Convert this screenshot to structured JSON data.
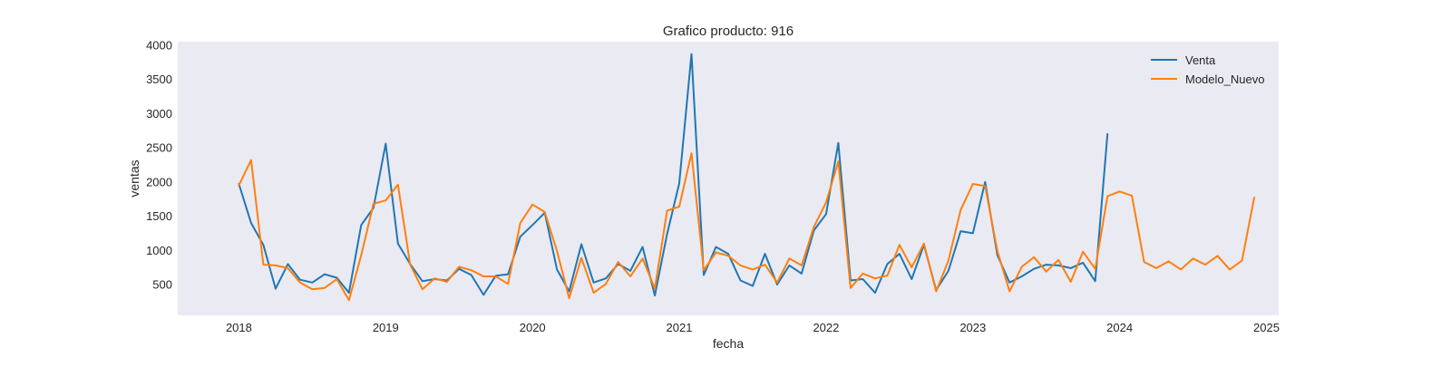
{
  "chart_data": {
    "type": "line",
    "title": "Grafico producto: 916",
    "xlabel": "fecha",
    "ylabel": "ventas",
    "x_ticks": [
      "2018",
      "2019",
      "2020",
      "2021",
      "2022",
      "2023",
      "2024",
      "2025"
    ],
    "y_ticks": [
      500,
      1000,
      1500,
      2000,
      2500,
      3000,
      3500,
      4000
    ],
    "xlim": [
      "2017-08",
      "2025-02"
    ],
    "ylim": [
      50,
      4050
    ],
    "grid": false,
    "legend_position": "top-right",
    "series": [
      {
        "name": "Venta",
        "color": "#1f77b4",
        "x": [
          "2018-01",
          "2018-02",
          "2018-03",
          "2018-04",
          "2018-05",
          "2018-06",
          "2018-07",
          "2018-08",
          "2018-09",
          "2018-10",
          "2018-11",
          "2018-12",
          "2019-01",
          "2019-02",
          "2019-03",
          "2019-04",
          "2019-05",
          "2019-06",
          "2019-07",
          "2019-08",
          "2019-09",
          "2019-10",
          "2019-11",
          "2019-12",
          "2020-01",
          "2020-02",
          "2020-03",
          "2020-04",
          "2020-05",
          "2020-06",
          "2020-07",
          "2020-08",
          "2020-09",
          "2020-10",
          "2020-11",
          "2020-12",
          "2021-01",
          "2021-02",
          "2021-03",
          "2021-04",
          "2021-05",
          "2021-06",
          "2021-07",
          "2021-08",
          "2021-09",
          "2021-10",
          "2021-11",
          "2021-12",
          "2022-01",
          "2022-02",
          "2022-03",
          "2022-04",
          "2022-05",
          "2022-06",
          "2022-07",
          "2022-08",
          "2022-09",
          "2022-10",
          "2022-11",
          "2022-12",
          "2023-01",
          "2023-02",
          "2023-03",
          "2023-04",
          "2023-05",
          "2023-06",
          "2023-07",
          "2023-08",
          "2023-09",
          "2023-10",
          "2023-11",
          "2023-12"
        ],
        "values": [
          1970,
          1400,
          1080,
          440,
          800,
          570,
          530,
          650,
          600,
          380,
          1370,
          1620,
          2560,
          1100,
          800,
          550,
          580,
          560,
          730,
          640,
          350,
          630,
          650,
          1200,
          1370,
          1550,
          720,
          400,
          1090,
          530,
          590,
          800,
          700,
          1050,
          340,
          1240,
          1980,
          3870,
          640,
          1050,
          950,
          560,
          480,
          950,
          500,
          780,
          660,
          1290,
          1530,
          2570,
          560,
          580,
          380,
          800,
          950,
          580,
          1080,
          420,
          700,
          1280,
          1250,
          2000,
          930,
          530,
          620,
          730,
          790,
          780,
          740,
          820,
          550,
          2700
        ]
      },
      {
        "name": "Modelo_Nuevo",
        "color": "#ff7f0e",
        "x": [
          "2018-01",
          "2018-02",
          "2018-03",
          "2018-04",
          "2018-05",
          "2018-06",
          "2018-07",
          "2018-08",
          "2018-09",
          "2018-10",
          "2018-11",
          "2018-12",
          "2019-01",
          "2019-02",
          "2019-03",
          "2019-04",
          "2019-05",
          "2019-06",
          "2019-07",
          "2019-08",
          "2019-09",
          "2019-10",
          "2019-11",
          "2019-12",
          "2020-01",
          "2020-02",
          "2020-03",
          "2020-04",
          "2020-05",
          "2020-06",
          "2020-07",
          "2020-08",
          "2020-09",
          "2020-10",
          "2020-11",
          "2020-12",
          "2021-01",
          "2021-02",
          "2021-03",
          "2021-04",
          "2021-05",
          "2021-06",
          "2021-07",
          "2021-08",
          "2021-09",
          "2021-10",
          "2021-11",
          "2021-12",
          "2022-01",
          "2022-02",
          "2022-03",
          "2022-04",
          "2022-05",
          "2022-06",
          "2022-07",
          "2022-08",
          "2022-09",
          "2022-10",
          "2022-11",
          "2022-12",
          "2023-01",
          "2023-02",
          "2023-03",
          "2023-04",
          "2023-05",
          "2023-06",
          "2023-07",
          "2023-08",
          "2023-09",
          "2023-10",
          "2023-11",
          "2023-12",
          "2024-01",
          "2024-02",
          "2024-03",
          "2024-04",
          "2024-05",
          "2024-06",
          "2024-07",
          "2024-08",
          "2024-09",
          "2024-10",
          "2024-11",
          "2024-12"
        ],
        "values": [
          1950,
          2320,
          790,
          780,
          740,
          530,
          430,
          450,
          580,
          270,
          930,
          1680,
          1730,
          1960,
          790,
          430,
          590,
          540,
          760,
          710,
          620,
          620,
          510,
          1400,
          1670,
          1560,
          990,
          300,
          890,
          380,
          510,
          830,
          620,
          880,
          440,
          1580,
          1640,
          2420,
          710,
          970,
          920,
          780,
          720,
          790,
          530,
          880,
          780,
          1340,
          1700,
          2300,
          450,
          660,
          590,
          630,
          1080,
          750,
          1100,
          400,
          850,
          1590,
          1970,
          1940,
          990,
          400,
          760,
          900,
          690,
          860,
          540,
          980,
          730,
          1790,
          1860,
          1800,
          830,
          740,
          840,
          720,
          880,
          790,
          920,
          720,
          850,
          1770
        ]
      }
    ]
  }
}
